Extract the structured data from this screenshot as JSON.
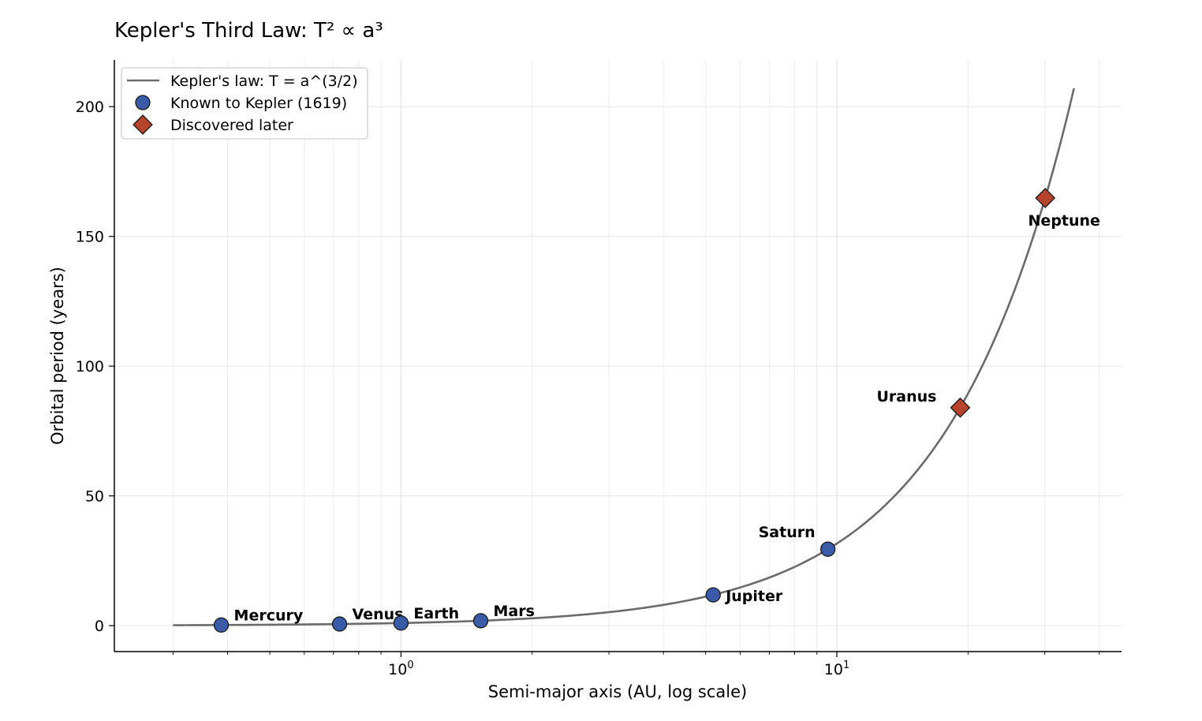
{
  "chart_data": {
    "type": "scatter",
    "title": "Kepler's Third Law:   T² ∝ a³",
    "xlabel": "Semi-major axis (AU, log scale)",
    "ylabel": "Orbital period (years)",
    "x_scale": "log",
    "xlim": [
      0.22,
      45
    ],
    "ylim": [
      -10,
      218
    ],
    "grid": true,
    "legend_position": "upper-left",
    "x_ticks": [
      {
        "value": 1,
        "base": "10",
        "exp": "0"
      },
      {
        "value": 10,
        "base": "10",
        "exp": "1"
      }
    ],
    "y_ticks": [
      0,
      50,
      100,
      150,
      200
    ],
    "curve": {
      "name": "Kepler's law: T = a^(3/2)",
      "x_range": [
        0.3,
        35
      ],
      "exponent": 1.5,
      "color": "#6b6b6b"
    },
    "series": [
      {
        "name": "Known to Kepler (1619)",
        "marker": "circle",
        "color": "#3a5ba8",
        "points": [
          {
            "label": "Mercury",
            "x": 0.387,
            "y": 0.241
          },
          {
            "label": "Venus",
            "x": 0.723,
            "y": 0.615
          },
          {
            "label": "Earth",
            "x": 1.0,
            "y": 1.0
          },
          {
            "label": "Mars",
            "x": 1.524,
            "y": 1.881
          },
          {
            "label": "Jupiter",
            "x": 5.203,
            "y": 11.86
          },
          {
            "label": "Saturn",
            "x": 9.537,
            "y": 29.46
          }
        ]
      },
      {
        "name": "Discovered later",
        "marker": "diamond",
        "color": "#b5442a",
        "points": [
          {
            "label": "Uranus",
            "x": 19.19,
            "y": 84.01
          },
          {
            "label": "Neptune",
            "x": 30.07,
            "y": 164.8
          }
        ]
      }
    ]
  }
}
